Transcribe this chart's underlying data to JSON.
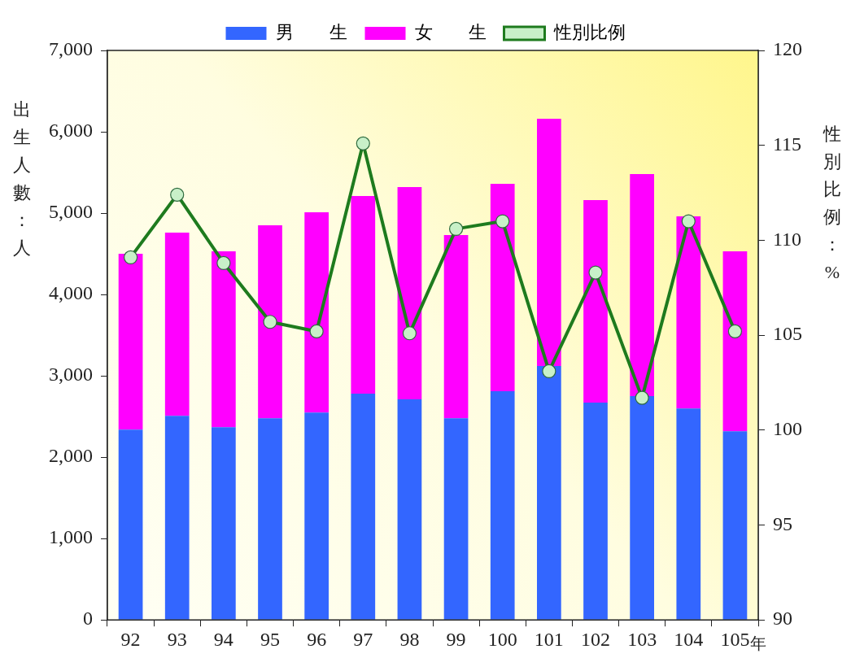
{
  "chart_data": {
    "type": "bar",
    "stacked": true,
    "xlabel": "年",
    "ylabel": "出生人數：人",
    "y2label": "性別比例：%",
    "categories": [
      "92",
      "93",
      "94",
      "95",
      "96",
      "97",
      "98",
      "99",
      "100",
      "101",
      "102",
      "103",
      "104",
      "105"
    ],
    "series": [
      {
        "name": "男　　生",
        "color": "#3366ff",
        "values": [
          2340,
          2510,
          2370,
          2480,
          2550,
          2780,
          2710,
          2480,
          2810,
          3120,
          2670,
          2750,
          2600,
          2320
        ]
      },
      {
        "name": "女　　生",
        "color": "#ff00ff",
        "values": [
          2160,
          2250,
          2160,
          2370,
          2460,
          2430,
          2610,
          2250,
          2550,
          3040,
          2490,
          2730,
          2360,
          2210
        ]
      },
      {
        "name": "性別比例",
        "type": "line",
        "axis": "y2",
        "color": "#1e7b1e",
        "values": [
          109.1,
          112.4,
          108.8,
          105.7,
          105.2,
          115.1,
          105.1,
          110.6,
          111.0,
          103.1,
          108.3,
          101.7,
          111.0,
          105.2
        ]
      }
    ],
    "ylim": [
      0,
      7000
    ],
    "yticks": [
      {
        "value": 0,
        "label": "0"
      },
      {
        "value": 1000,
        "label": "1,000"
      },
      {
        "value": 2000,
        "label": "2,000"
      },
      {
        "value": 3000,
        "label": "3,000"
      },
      {
        "value": 4000,
        "label": "4,000"
      },
      {
        "value": 5000,
        "label": "5,000"
      },
      {
        "value": 6000,
        "label": "6,000"
      },
      {
        "value": 7000,
        "label": "7,000"
      }
    ],
    "y2lim": [
      90,
      120
    ],
    "y2ticks": [
      90,
      95,
      100,
      105,
      110,
      115,
      120
    ],
    "legend": "top",
    "marker": "circle"
  }
}
